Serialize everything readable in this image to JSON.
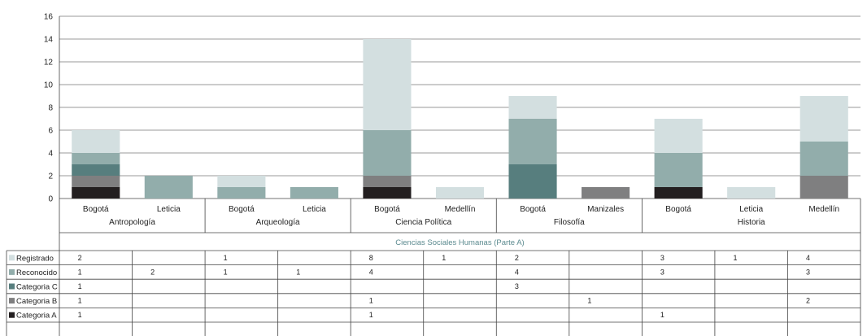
{
  "chart_data": {
    "type": "bar",
    "stacked": true,
    "ylim": [
      0,
      16
    ],
    "yticks": [
      0,
      2,
      4,
      6,
      8,
      10,
      12,
      14,
      16
    ],
    "grid": true,
    "section_title": "Ciencias Sociales Humanas (Parte A)",
    "groups": [
      {
        "label": "Antropología",
        "categories": [
          "Bogotá",
          "Leticia"
        ]
      },
      {
        "label": "Arqueología",
        "categories": [
          "Bogotá",
          "Leticia"
        ]
      },
      {
        "label": "Ciencia Política",
        "categories": [
          "Bogotá",
          "Medellín"
        ]
      },
      {
        "label": "Filosofía",
        "categories": [
          "Bogotá",
          "Manizales"
        ]
      },
      {
        "label": "Historia",
        "categories": [
          "Bogotá",
          "Leticia",
          "Medellín"
        ]
      }
    ],
    "categories": [
      "Bogotá",
      "Leticia",
      "Bogotá",
      "Leticia",
      "Bogotá",
      "Medellín",
      "Bogotá",
      "Manizales",
      "Bogotá",
      "Leticia",
      "Medellín"
    ],
    "series": [
      {
        "name": "Categoria A",
        "color": "#231f20",
        "values": [
          1,
          null,
          null,
          null,
          1,
          null,
          null,
          null,
          1,
          null,
          null
        ]
      },
      {
        "name": "Categoria B",
        "color": "#7f7f80",
        "values": [
          1,
          null,
          null,
          null,
          1,
          null,
          null,
          1,
          null,
          null,
          2
        ]
      },
      {
        "name": "Categoria C",
        "color": "#577e7e",
        "values": [
          1,
          null,
          null,
          null,
          null,
          null,
          3,
          null,
          null,
          null,
          null
        ]
      },
      {
        "name": "Reconocido",
        "color": "#92adab",
        "values": [
          1,
          2,
          1,
          1,
          4,
          null,
          4,
          null,
          3,
          null,
          3
        ]
      },
      {
        "name": "Registrado",
        "color": "#d3dfe0",
        "values": [
          2,
          null,
          1,
          null,
          8,
          1,
          2,
          null,
          3,
          1,
          4
        ]
      }
    ],
    "table_row_order": [
      "Registrado",
      "Reconocido",
      "Categoria C",
      "Categoria B",
      "Categoria A"
    ]
  }
}
